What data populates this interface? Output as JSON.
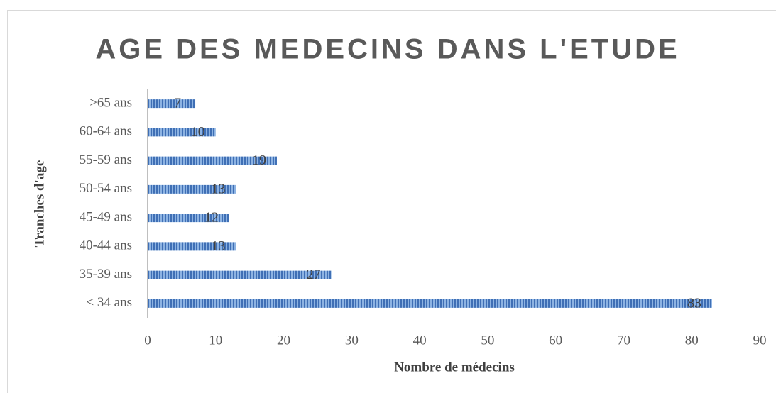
{
  "chart_data": {
    "type": "bar",
    "orientation": "horizontal",
    "title": "AGE DES MEDECINS DANS L'ETUDE",
    "x_label": "Nombre de médecins",
    "y_label": "Tranches d'age",
    "categories": [
      ">65 ans",
      "60-64 ans",
      "55-59 ans",
      "50-54 ans",
      "45-49 ans",
      "40-44 ans",
      "35-39 ans",
      "< 34 ans"
    ],
    "values": [
      7,
      10,
      19,
      13,
      12,
      13,
      27,
      83
    ],
    "color": "#4f81bd",
    "xlim": [
      0,
      90
    ],
    "xticks": [
      0,
      10,
      20,
      30,
      40,
      50,
      60,
      70,
      80,
      90
    ],
    "grid": false
  }
}
